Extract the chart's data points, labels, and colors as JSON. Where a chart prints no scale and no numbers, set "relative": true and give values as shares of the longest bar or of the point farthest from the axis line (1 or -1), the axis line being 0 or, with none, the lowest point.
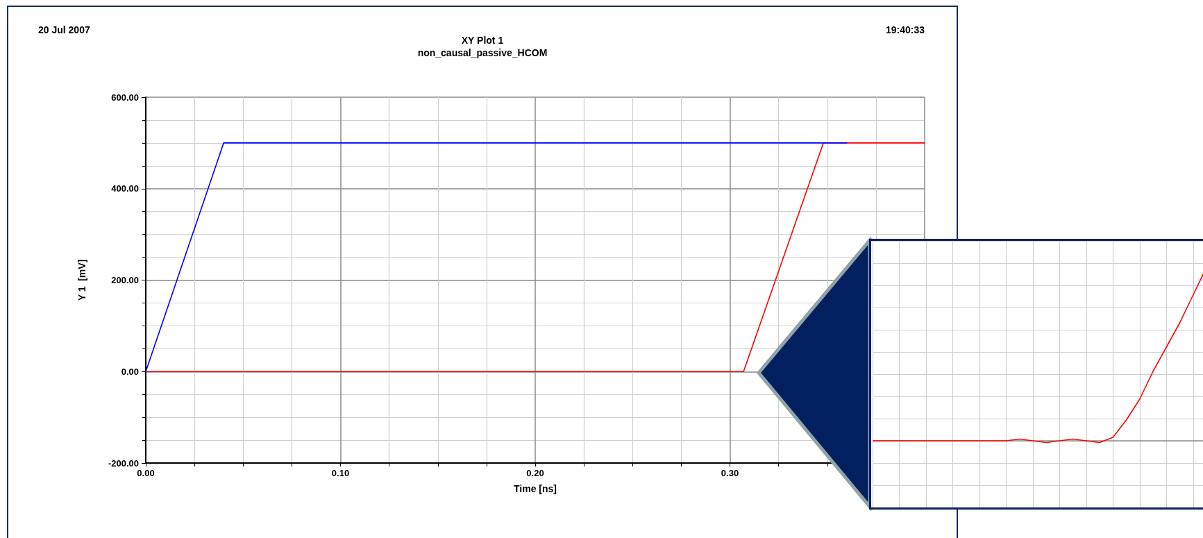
{
  "chart_data": [
    {
      "type": "line",
      "title": "XY Plot 1",
      "subtitle": "non_causal_passive_HCOM",
      "annotations": [
        "20 Jul 2007",
        "19:40:33"
      ],
      "xlabel": "Time [ns]",
      "ylabel": "Y 1  [mV]",
      "xlim": [
        0,
        0.4
      ],
      "xticks": [
        {
          "value": 0,
          "label": "0.00"
        },
        {
          "value": 0.1,
          "label": "0.10"
        },
        {
          "value": 0.2,
          "label": "0.20"
        },
        {
          "value": 0.3,
          "label": "0.30"
        },
        {
          "value": 0.4,
          "label": null
        }
      ],
      "ylim": [
        -200,
        600
      ],
      "yticks": [
        {
          "value": -200,
          "label": "-200.00"
        },
        {
          "value": 0,
          "label": "0.00"
        },
        {
          "value": 200,
          "label": "200.00"
        },
        {
          "value": 400,
          "label": "400.00"
        },
        {
          "value": 600,
          "label": "600.00"
        }
      ],
      "grid": true,
      "marker": "none",
      "line_style": "solid",
      "series": [
        {
          "color": "#0000ff",
          "x": [
            0,
            0.04,
            0.36
          ],
          "values": [
            0,
            500,
            500
          ]
        },
        {
          "color": "#ff0000",
          "x": [
            0,
            0.307,
            0.348,
            0.4
          ],
          "values": [
            0,
            0,
            500,
            500
          ]
        }
      ]
    },
    {
      "type": "line",
      "relative": true,
      "grid": true,
      "marker": "none",
      "line_style": "solid",
      "categories": [
        null,
        null,
        null,
        null,
        null,
        null,
        null,
        null,
        null,
        null,
        null,
        null,
        null,
        null,
        null,
        null,
        null,
        null,
        null,
        null,
        null,
        null,
        null,
        null,
        null,
        null
      ],
      "series": [
        {
          "color": "#ff0000",
          "values": [
            0,
            0,
            0,
            0,
            0,
            0,
            0,
            0,
            0,
            0,
            0,
            0.01,
            0,
            -0.01,
            0,
            0.01,
            0,
            -0.01,
            0.02,
            0.12,
            0.24,
            0.4,
            0.54,
            0.68,
            0.84,
            1
          ]
        }
      ]
    }
  ]
}
